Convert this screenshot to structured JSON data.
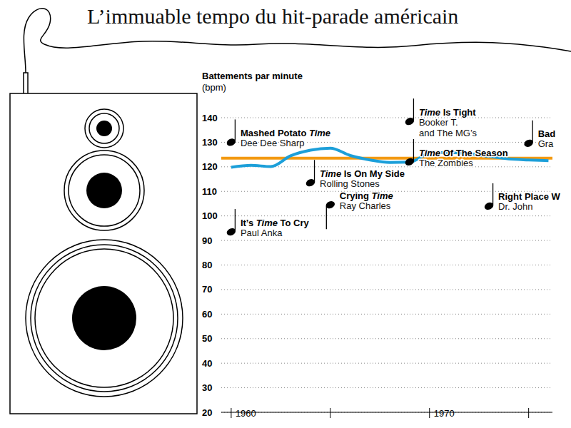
{
  "chart_data": {
    "type": "line",
    "title": "L’immuable tempo du hit-parade américain",
    "ylabel": "Battements par minute",
    "ylabel_unit": "(bpm)",
    "x": [
      1960,
      1961,
      1962,
      1963,
      1964,
      1965,
      1966,
      1967,
      1968,
      1969,
      1970,
      1971,
      1972,
      1973,
      1974,
      1975,
      1976
    ],
    "series": [
      {
        "color": "#1c9fd9",
        "values": [
          119.8,
          120.6,
          120.1,
          124.5,
          126.8,
          127.6,
          124.6,
          122.8,
          121.8,
          121.9,
          125.5,
          125.8,
          125.3,
          124.2,
          123.2,
          122.8,
          122.5
        ]
      }
    ],
    "reference_value": 123.5,
    "reference_color": "#f39a12",
    "xlim": [
      1959.5,
      1976.2
    ],
    "xticks": [
      1960,
      {
        "value": 1965,
        "label": null
      },
      1970,
      {
        "value": 1975,
        "label": null
      }
    ],
    "ylim": [
      20,
      140
    ],
    "yticks": [
      20,
      30,
      40,
      50,
      60,
      70,
      80,
      90,
      100,
      110,
      120,
      130,
      140
    ],
    "grid": true,
    "emphasis": "Time",
    "songs": [
      {
        "x": 1960,
        "y": 93.5,
        "title": "It’s Time To Cry",
        "artist": "Paul Anka"
      },
      {
        "x": 1960,
        "y": 130,
        "title": "Mashed Potato Time",
        "artist": "Dee Dee Sharp"
      },
      {
        "x": 1964,
        "y": 113.5,
        "title": "Time Is On My Side",
        "artist": "Rolling Stones"
      },
      {
        "x": 1965,
        "y": 104.5,
        "title": "Crying Time",
        "artist": "Ray Charles"
      },
      {
        "x": 1969,
        "y": 138.5,
        "title": "Time Is Tight",
        "artist": "Booker T. and The MG’s"
      },
      {
        "x": 1969,
        "y": 122,
        "title": "Time Of The Season",
        "artist": "The Zombies"
      },
      {
        "x": 1973,
        "y": 104,
        "title": "Right Place W",
        "artist": "Dr. John"
      },
      {
        "x": 1975,
        "y": 129.6,
        "title": "Bad",
        "artist": "Gra"
      }
    ]
  }
}
